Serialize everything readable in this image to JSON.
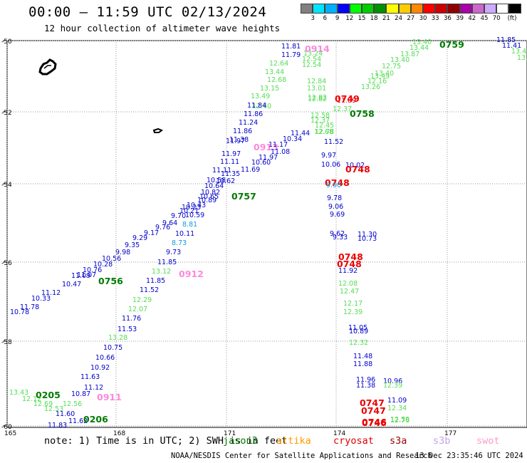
{
  "title": "00:00 – 11:59 UTC 02/13/2024",
  "subtitle": "12 hour collection of altimeter wave heights",
  "colorbar": {
    "unit": "(ft)",
    "colors": [
      "#808080",
      "#00e5ff",
      "#00b0ff",
      "#0000ff",
      "#00ff00",
      "#00cc00",
      "#009000",
      "#ffff00",
      "#ffcc00",
      "#ff8800",
      "#ff0000",
      "#cc0000",
      "#900000",
      "#aa00aa",
      "#cc66cc",
      "#ccaaff",
      "#ffffff",
      "#000000"
    ],
    "labels": [
      "3",
      "6",
      "9",
      "12",
      "15",
      "18",
      "21",
      "24",
      "27",
      "30",
      "33",
      "36",
      "39",
      "42",
      "45",
      "70"
    ]
  },
  "axes": {
    "y_labels": [
      "-50",
      "-52",
      "-54",
      "-56",
      "-58",
      "-60"
    ],
    "x_labels": [
      "165",
      "168",
      "171",
      "174",
      "177"
    ]
  },
  "note": "note: 1) Time is in UTC; 2) SWH is in feet",
  "satellites": [
    {
      "name": "jason3",
      "color": "#007a00"
    },
    {
      "name": "altika",
      "color": "#ff9900"
    },
    {
      "name": "cryosat",
      "color": "#dd0000"
    },
    {
      "name": "s3a",
      "color": "#990000"
    },
    {
      "name": "s3b",
      "color": "#c8a0e6"
    },
    {
      "name": "swot",
      "color": "#ff99cc"
    }
  ],
  "credit": "NOAA/NESDIS Center for Satellite Applications and Research",
  "credit_time": "13 Dec 23:35:46 UTC 2024",
  "track_colors": {
    "blue": "#0000cc",
    "lightgreen": "#55dd55",
    "green": "#007a00",
    "red": "#ee0000",
    "pink": "#ff88dd",
    "cyan": "#1199dd"
  },
  "labels": [
    [
      "0759",
      "green"
    ],
    [
      "13.40",
      "lightgreen"
    ],
    [
      "13.44",
      "lightgreen"
    ],
    [
      "13.87",
      "lightgreen"
    ],
    [
      "13.40",
      "lightgreen"
    ],
    [
      "12.75",
      "lightgreen"
    ],
    [
      "13.40",
      "lightgreen"
    ],
    [
      "13.49",
      "lightgreen"
    ],
    [
      "13.26",
      "lightgreen"
    ],
    [
      "12.16",
      "lightgreen"
    ],
    [
      "11.85",
      "blue"
    ],
    [
      "11.41",
      "blue"
    ],
    [
      "13.4",
      "lightgreen"
    ],
    [
      "13.",
      "lightgreen"
    ],
    [
      "0914",
      "pink"
    ],
    [
      "11.81",
      "blue"
    ],
    [
      "11.79",
      "blue"
    ],
    [
      "13.24",
      "lightgreen"
    ],
    [
      "12.54",
      "lightgreen"
    ],
    [
      "12.54",
      "lightgreen"
    ],
    [
      "12.64",
      "lightgreen"
    ],
    [
      "13.44",
      "lightgreen"
    ],
    [
      "12.68",
      "lightgreen"
    ],
    [
      "13.15",
      "lightgreen"
    ],
    [
      "13.49",
      "lightgreen"
    ],
    [
      "12.40",
      "lightgreen"
    ],
    [
      "11.84",
      "blue"
    ],
    [
      "11.86",
      "blue"
    ],
    [
      "11.24",
      "blue"
    ],
    [
      "11.86",
      "blue"
    ],
    [
      "11.38",
      "blue"
    ],
    [
      "11.97",
      "blue"
    ],
    [
      "11.97",
      "blue"
    ],
    [
      "11.11",
      "blue"
    ],
    [
      "11.11",
      "blue"
    ],
    [
      "11.35",
      "blue"
    ],
    [
      "10.58",
      "blue"
    ],
    [
      "10.62",
      "blue"
    ],
    [
      "10.64",
      "blue"
    ],
    [
      "10.82",
      "blue"
    ],
    [
      "10.65",
      "blue"
    ],
    [
      "10.89",
      "blue"
    ],
    [
      "10.43",
      "blue"
    ],
    [
      "10.23",
      "blue"
    ],
    [
      "10.21",
      "blue"
    ],
    [
      "10.59",
      "blue"
    ],
    [
      "9.70",
      "blue"
    ],
    [
      "9.64",
      "blue"
    ],
    [
      "9.76",
      "blue"
    ],
    [
      "9.17",
      "blue"
    ],
    [
      "9.29",
      "blue"
    ],
    [
      "9.35",
      "blue"
    ],
    [
      "9.98",
      "blue"
    ],
    [
      "10.56",
      "blue"
    ],
    [
      "10.28",
      "blue"
    ],
    [
      "10.76",
      "blue"
    ],
    [
      "11.09",
      "blue"
    ],
    [
      "11.07",
      "blue"
    ],
    [
      "10.47",
      "blue"
    ],
    [
      "11.12",
      "blue"
    ],
    [
      "10.33",
      "blue"
    ],
    [
      "11.78",
      "blue"
    ],
    [
      "10.78",
      "blue"
    ],
    [
      "0756",
      "green"
    ],
    [
      "0913",
      "pink"
    ],
    [
      "11.08",
      "blue"
    ],
    [
      "10.60",
      "blue"
    ],
    [
      "11.17",
      "blue"
    ],
    [
      "11.97",
      "blue"
    ],
    [
      "11.69",
      "blue"
    ],
    [
      "10.34",
      "blue"
    ],
    [
      "11.44",
      "blue"
    ],
    [
      "0757",
      "green"
    ],
    [
      "8.81",
      "cyan"
    ],
    [
      "10.11",
      "blue"
    ],
    [
      "8.73",
      "cyan"
    ],
    [
      "9.73",
      "blue"
    ],
    [
      "11.85",
      "blue"
    ],
    [
      "13.12",
      "lightgreen"
    ],
    [
      "0912",
      "pink"
    ],
    [
      "11.85",
      "blue"
    ],
    [
      "11.52",
      "blue"
    ],
    [
      "12.29",
      "lightgreen"
    ],
    [
      "12.07",
      "lightgreen"
    ],
    [
      "11.76",
      "blue"
    ],
    [
      "11.53",
      "blue"
    ],
    [
      "13.28",
      "lightgreen"
    ],
    [
      "10.75",
      "blue"
    ],
    [
      "10.66",
      "blue"
    ],
    [
      "10.92",
      "blue"
    ],
    [
      "11.63",
      "blue"
    ],
    [
      "11.12",
      "blue"
    ],
    [
      "10.87",
      "blue"
    ],
    [
      "0911",
      "pink"
    ],
    [
      "12.56",
      "lightgreen"
    ],
    [
      "11.60",
      "blue"
    ],
    [
      "11.62",
      "blue"
    ],
    [
      "11.83",
      "blue"
    ],
    [
      "0206",
      "green"
    ],
    [
      "0205",
      "green"
    ],
    [
      "13.43",
      "lightgreen"
    ],
    [
      "12.12",
      "lightgreen"
    ],
    [
      "12.69",
      "lightgreen"
    ],
    [
      "12.53",
      "lightgreen"
    ],
    [
      "12.84",
      "lightgreen"
    ],
    [
      "13.01",
      "lightgreen"
    ],
    [
      "0749",
      "red"
    ],
    [
      "12.82",
      "lightgreen"
    ],
    [
      "12.82",
      "lightgreen"
    ],
    [
      "11.89",
      "red"
    ],
    [
      "0758",
      "green"
    ],
    [
      "12.37",
      "lightgreen"
    ],
    [
      "12.58",
      "lightgreen"
    ],
    [
      "12.37",
      "lightgreen"
    ],
    [
      "12.45",
      "lightgreen"
    ],
    [
      "12.78",
      "lightgreen"
    ],
    [
      "12.68",
      "lightgreen"
    ],
    [
      "11.52",
      "blue"
    ],
    [
      "9.97",
      "blue"
    ],
    [
      "10.06",
      "blue"
    ],
    [
      "10.02",
      "blue"
    ],
    [
      "0748",
      "red"
    ],
    [
      "0748",
      "red"
    ],
    [
      "9.90",
      "cyan"
    ],
    [
      "9.78",
      "blue"
    ],
    [
      "9.06",
      "blue"
    ],
    [
      "9.69",
      "blue"
    ],
    [
      "9.62",
      "blue"
    ],
    [
      "9.33",
      "blue"
    ],
    [
      "11.30",
      "blue"
    ],
    [
      "10.73",
      "blue"
    ],
    [
      "0748",
      "red"
    ],
    [
      "0748",
      "red"
    ],
    [
      "11.92",
      "blue"
    ],
    [
      "12.08",
      "lightgreen"
    ],
    [
      "12.47",
      "lightgreen"
    ],
    [
      "12.17",
      "lightgreen"
    ],
    [
      "12.39",
      "lightgreen"
    ],
    [
      "11.05",
      "blue"
    ],
    [
      "10.89",
      "blue"
    ],
    [
      "12.32",
      "lightgreen"
    ],
    [
      "11.48",
      "blue"
    ],
    [
      "11.88",
      "blue"
    ],
    [
      "11.96",
      "blue"
    ],
    [
      "10.96",
      "blue"
    ],
    [
      "11.38",
      "blue"
    ],
    [
      "12.39",
      "lightgreen"
    ],
    [
      "0747",
      "red"
    ],
    [
      "11.09",
      "blue"
    ],
    [
      "0747",
      "red"
    ],
    [
      "12.34",
      "lightgreen"
    ],
    [
      "0746",
      "red"
    ],
    [
      "12.59",
      "lightgreen"
    ],
    [
      "0746",
      "red"
    ],
    [
      "12.76",
      "lightgreen"
    ],
    [
      "12.17",
      "lightgreen"
    ],
    [
      "0746",
      "red"
    ]
  ]
}
